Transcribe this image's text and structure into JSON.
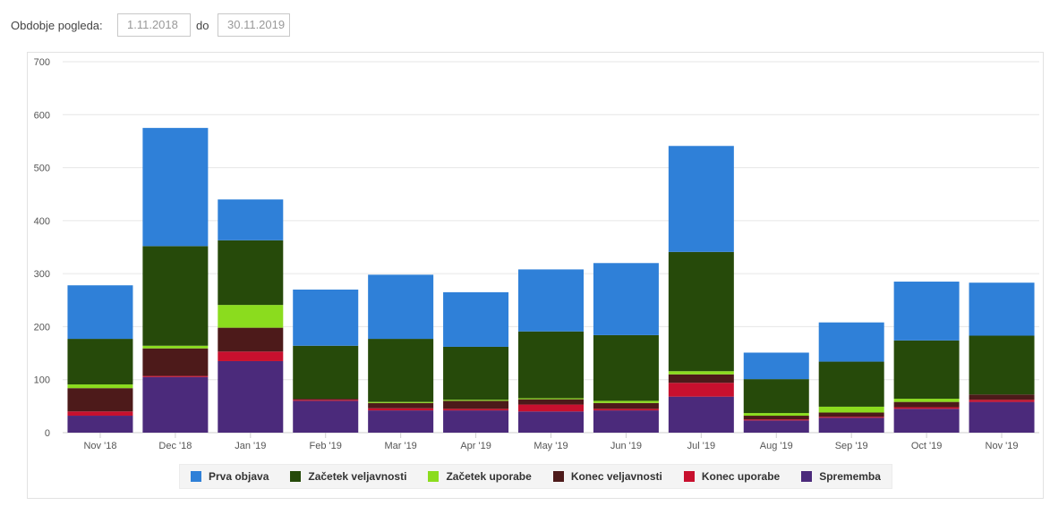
{
  "filter": {
    "period_label": "Obdobje pogleda:",
    "from_date": "1.11.2018",
    "to_label": "do",
    "to_date": "30.11.2019"
  },
  "chart_data": {
    "type": "bar",
    "stacked": true,
    "categories": [
      "Nov '18",
      "Dec '18",
      "Jan '19",
      "Feb '19",
      "Mar '19",
      "Apr '19",
      "May '19",
      "Jun '19",
      "Jul '19",
      "Aug '19",
      "Sep '19",
      "Oct '19",
      "Nov '19"
    ],
    "ylim": [
      0,
      700
    ],
    "yticks": [
      0,
      100,
      200,
      300,
      400,
      500,
      600,
      700
    ],
    "grid": true,
    "legend_position": "bottom",
    "series": [
      {
        "name": "Sprememba",
        "color": "#4b2a7b",
        "values": [
          32,
          105,
          135,
          60,
          42,
          42,
          40,
          42,
          68,
          23,
          28,
          45,
          58
        ]
      },
      {
        "name": "Konec uporabe",
        "color": "#c8102e",
        "values": [
          8,
          2,
          18,
          2,
          4,
          3,
          13,
          3,
          26,
          2,
          2,
          3,
          4
        ]
      },
      {
        "name": "Konec veljavnosti",
        "color": "#4d1a1a",
        "values": [
          44,
          52,
          45,
          2,
          10,
          15,
          10,
          11,
          16,
          7,
          8,
          10,
          10
        ]
      },
      {
        "name": "Začetek uporabe",
        "color": "#8bdc1e",
        "values": [
          7,
          5,
          43,
          0,
          2,
          2,
          2,
          4,
          6,
          5,
          11,
          6,
          0
        ]
      },
      {
        "name": "Začetek veljavnosti",
        "color": "#264a0a",
        "values": [
          86,
          188,
          122,
          100,
          119,
          100,
          126,
          124,
          225,
          64,
          85,
          110,
          111
        ]
      },
      {
        "name": "Prva objava",
        "color": "#2f80d8",
        "values": [
          101,
          223,
          77,
          106,
          121,
          103,
          117,
          136,
          200,
          50,
          74,
          111,
          100
        ]
      }
    ],
    "legend_order": [
      "Prva objava",
      "Začetek veljavnosti",
      "Začetek uporabe",
      "Konec veljavnosti",
      "Konec uporabe",
      "Sprememba"
    ]
  }
}
